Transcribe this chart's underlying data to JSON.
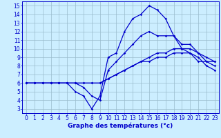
{
  "xlabel": "Graphe des températures (°c)",
  "bg_color": "#cceeff",
  "line_color": "#0000cc",
  "grid_color": "#99bbcc",
  "xlim": [
    -0.5,
    23.5
  ],
  "ylim": [
    2.5,
    15.5
  ],
  "xticks": [
    0,
    1,
    2,
    3,
    4,
    5,
    6,
    7,
    8,
    9,
    10,
    11,
    12,
    13,
    14,
    15,
    16,
    17,
    18,
    19,
    20,
    21,
    22,
    23
  ],
  "yticks": [
    3,
    4,
    5,
    6,
    7,
    8,
    9,
    10,
    11,
    12,
    13,
    14,
    15
  ],
  "series": [
    [
      6.0,
      6.0,
      6.0,
      6.0,
      6.0,
      6.0,
      5.0,
      4.5,
      3.0,
      4.5,
      9.0,
      9.5,
      12.0,
      13.5,
      14.0,
      15.0,
      14.5,
      13.5,
      11.5,
      10.0,
      9.5,
      8.5,
      8.5,
      8.5
    ],
    [
      6.0,
      6.0,
      6.0,
      6.0,
      6.0,
      6.0,
      6.0,
      5.5,
      4.5,
      4.0,
      7.5,
      8.5,
      9.5,
      10.5,
      11.5,
      12.0,
      11.5,
      11.5,
      11.5,
      10.5,
      10.5,
      9.5,
      9.0,
      8.5
    ],
    [
      6.0,
      6.0,
      6.0,
      6.0,
      6.0,
      6.0,
      6.0,
      6.0,
      6.0,
      6.0,
      6.5,
      7.0,
      7.5,
      8.0,
      8.5,
      9.0,
      9.5,
      9.5,
      10.0,
      10.0,
      10.0,
      9.5,
      8.5,
      8.0
    ],
    [
      6.0,
      6.0,
      6.0,
      6.0,
      6.0,
      6.0,
      6.0,
      6.0,
      6.0,
      6.0,
      6.5,
      7.0,
      7.5,
      8.0,
      8.5,
      8.5,
      9.0,
      9.0,
      9.5,
      9.5,
      9.5,
      9.0,
      8.0,
      7.5
    ]
  ],
  "tick_fontsize": 5.5,
  "xlabel_fontsize": 6.5,
  "marker_size": 1.8,
  "line_width": 0.9
}
